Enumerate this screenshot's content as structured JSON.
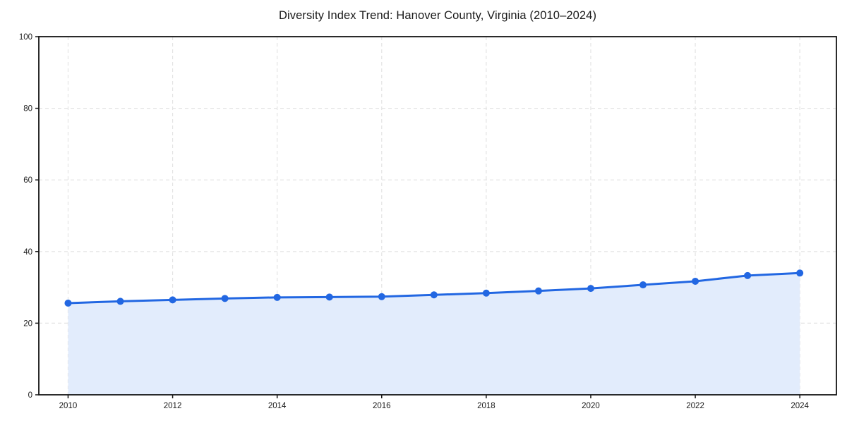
{
  "chart_data": {
    "type": "line",
    "title": "Diversity Index Trend: Hanover County, Virginia (2010–2024)",
    "x": [
      2010,
      2011,
      2012,
      2013,
      2014,
      2015,
      2016,
      2017,
      2018,
      2019,
      2020,
      2021,
      2022,
      2023,
      2024
    ],
    "series": [
      {
        "name": "Diversity Index",
        "values": [
          25.6,
          26.1,
          26.5,
          26.9,
          27.2,
          27.3,
          27.4,
          27.9,
          28.4,
          29.0,
          29.7,
          30.7,
          31.7,
          33.3,
          34.0
        ]
      }
    ],
    "xlabel": "",
    "ylabel": "",
    "xlim": [
      2009.44,
      2024.7
    ],
    "ylim": [
      0,
      100
    ],
    "xticks": [
      2010,
      2012,
      2014,
      2016,
      2018,
      2020,
      2022,
      2024
    ],
    "yticks": [
      0,
      20,
      40,
      60,
      80,
      100
    ],
    "grid": true,
    "grid_style": "dashed",
    "area_fill": true,
    "markers": true,
    "legend": "none"
  },
  "colors": {
    "line": "#2267e2",
    "marker": "#2267e2",
    "area": "#e2ecfc",
    "grid": "#e3e3e3",
    "spine": "#141414",
    "tick": "#141414",
    "text": "#1a1a1a",
    "background": "#ffffff"
  }
}
